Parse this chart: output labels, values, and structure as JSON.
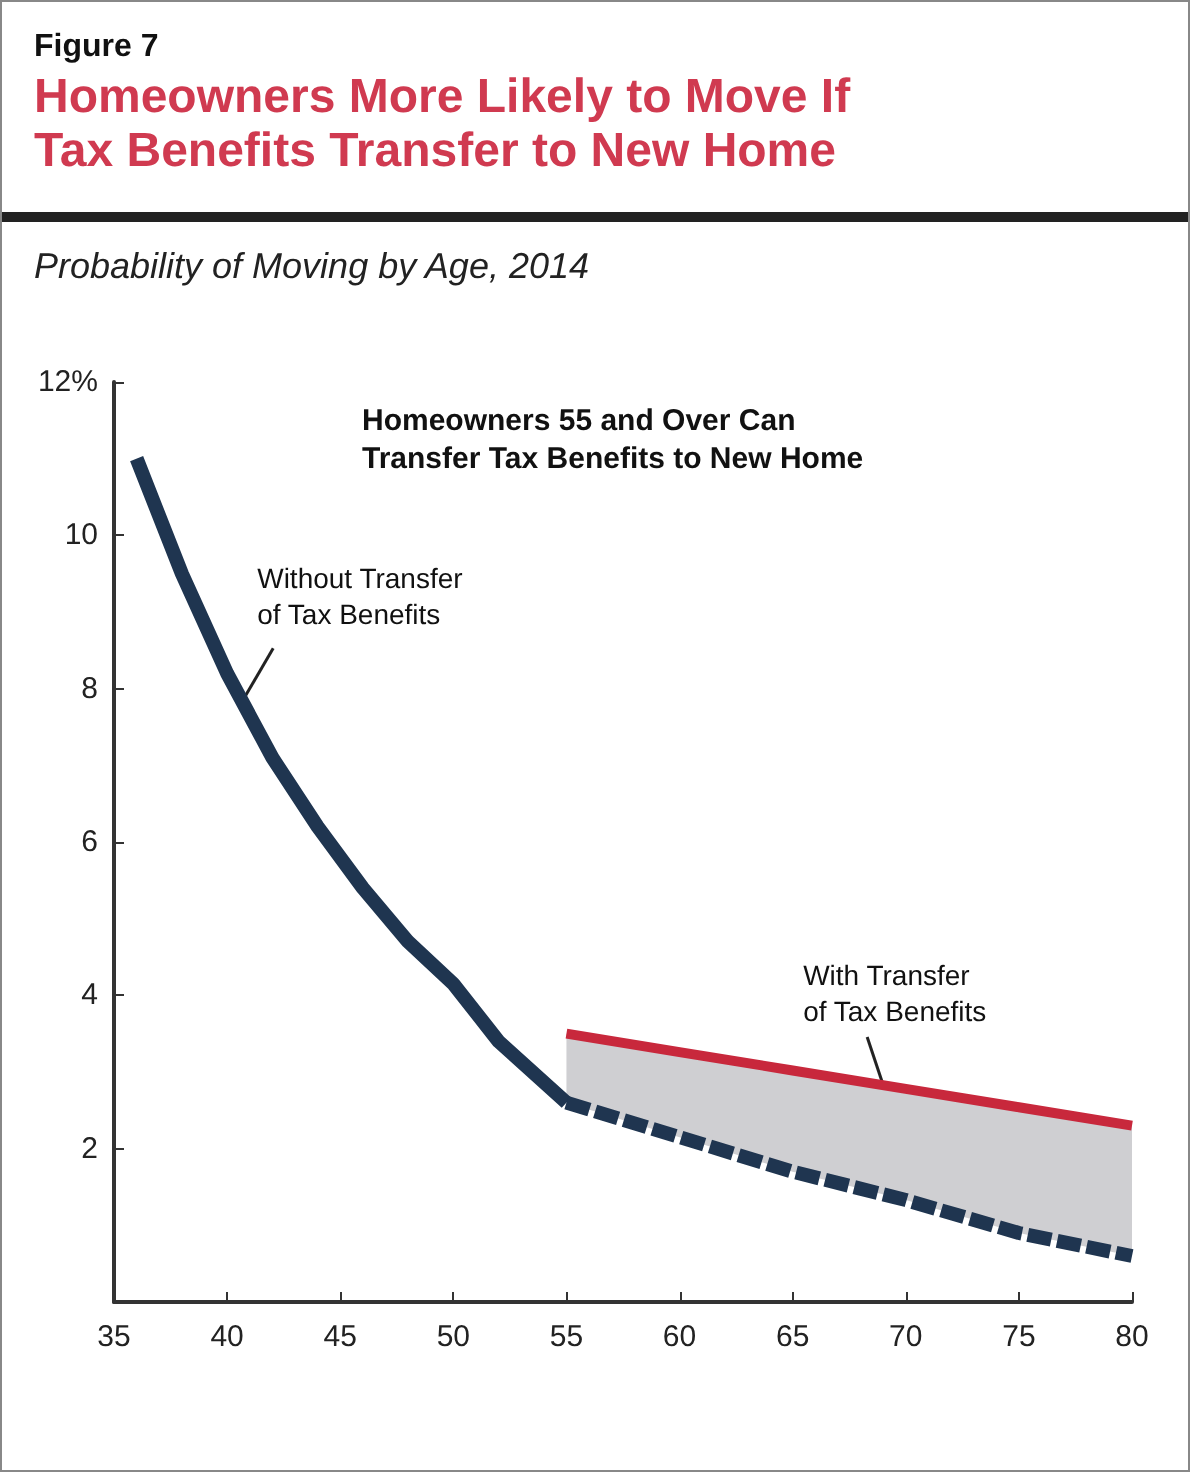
{
  "chart_data": {
    "type": "line",
    "title": "Homeowners More Likely to Move If Tax Benefits Transfer to New Home",
    "subtitle": "Probability of Moving by Age, 2014",
    "annotations": [
      "Figure 7",
      "Homeowners 55 and Over Can Transfer Tax Benefits to New Home",
      {
        "text": "Without Transfer of Tax Benefits",
        "x": 40.8,
        "y": 7.9
      },
      {
        "text": "With Transfer of Tax Benefits",
        "x": 69,
        "y": 2.83
      }
    ],
    "series": [
      {
        "color": "#1f3550",
        "line_style": "solid",
        "x": [
          36,
          38,
          40,
          42,
          44,
          46,
          48,
          50,
          52,
          55
        ],
        "values": [
          11.0,
          9.5,
          8.2,
          7.1,
          6.2,
          5.4,
          4.7,
          4.15,
          3.4,
          2.6
        ]
      },
      {
        "color": "#1f3550",
        "line_style": "dashed",
        "x": [
          55,
          60,
          65,
          70,
          75,
          80
        ],
        "values": [
          2.6,
          2.15,
          1.7,
          1.33,
          0.9,
          0.6
        ]
      },
      {
        "color": "#c8283c",
        "line_style": "solid",
        "x": [
          55,
          60,
          65,
          70,
          75,
          80
        ],
        "values": [
          3.5,
          3.26,
          3.02,
          2.78,
          2.54,
          2.3
        ],
        "lower": [
          2.6,
          2.15,
          1.7,
          1.33,
          0.9,
          0.6
        ],
        "upper": [
          3.5,
          3.26,
          3.02,
          2.78,
          2.54,
          2.3
        ]
      }
    ],
    "xlim": [
      35,
      80
    ],
    "xticks": [
      35,
      40,
      45,
      50,
      55,
      60,
      65,
      70,
      75,
      80
    ],
    "ylim": [
      0,
      12
    ],
    "yticks": [
      2,
      4,
      6,
      8,
      10,
      {
        "value": 12,
        "label": "12%"
      }
    ],
    "grid": false,
    "marker": "none"
  }
}
